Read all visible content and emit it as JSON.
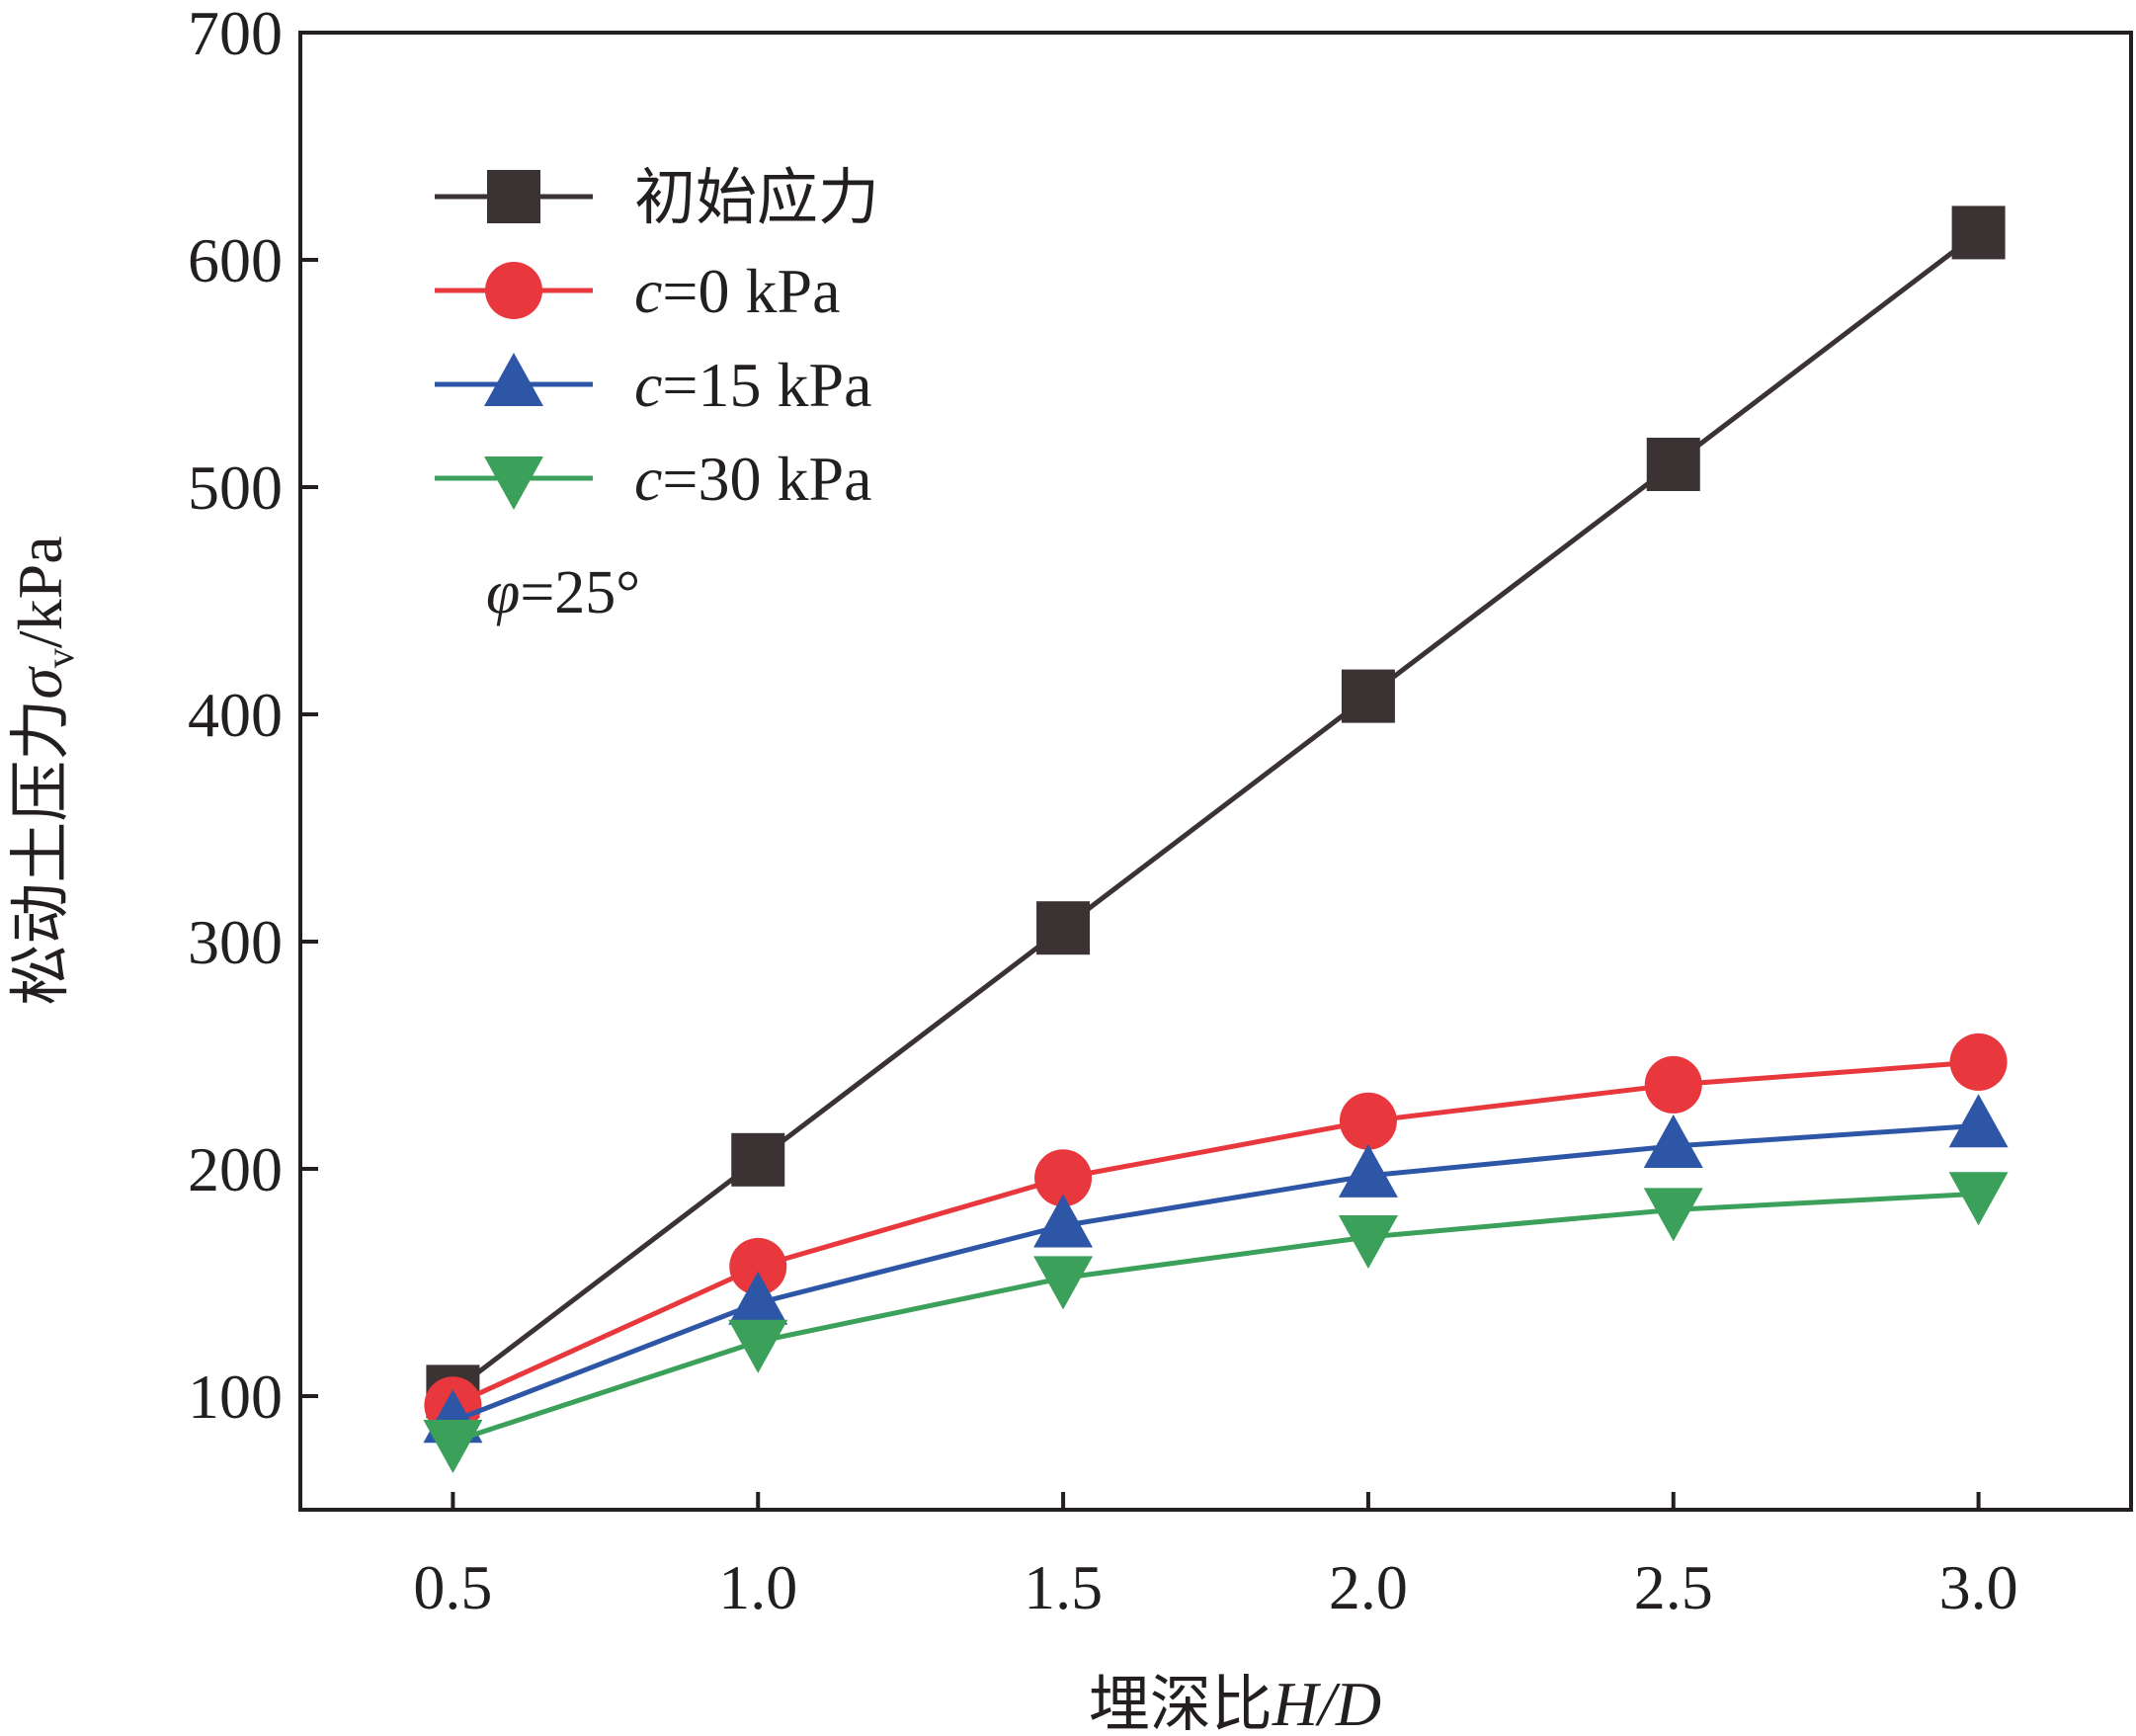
{
  "chart_data": {
    "type": "line",
    "xlabel_prefix": "埋深比",
    "xlabel_var": "H/D",
    "ylabel_prefix": "松动土压力",
    "ylabel_symbol": "σ",
    "ylabel_sub": "v",
    "ylabel_unit": "/kPa",
    "x": [
      0.5,
      1.0,
      1.5,
      2.0,
      2.5,
      3.0
    ],
    "x_tick_labels": [
      "0.5",
      "1.0",
      "1.5",
      "2.0",
      "2.5",
      "3.0"
    ],
    "y_ticks": [
      100,
      200,
      300,
      400,
      500,
      600,
      700
    ],
    "y_tick_labels": [
      "100",
      "200",
      "300",
      "400",
      "500",
      "600",
      "700"
    ],
    "xlim": [
      0.25,
      3.25
    ],
    "ylim": [
      50,
      700
    ],
    "grid": false,
    "legend_position": "top-left",
    "series": [
      {
        "name": "初始应力",
        "name_var": "",
        "name_rest": "",
        "color": "#3a3233",
        "marker": "square",
        "values": [
          102,
          204,
          306,
          408,
          510,
          612
        ]
      },
      {
        "name": "",
        "name_var": "c",
        "name_rest": "=0 kPa",
        "color": "#e8383d",
        "marker": "circle",
        "values": [
          96,
          157,
          196,
          221,
          237,
          247
        ]
      },
      {
        "name": "",
        "name_var": "c",
        "name_rest": "=15 kPa",
        "color": "#2e56a6",
        "marker": "triangle-up",
        "values": [
          89,
          141,
          175,
          197,
          210,
          219
        ]
      },
      {
        "name": "",
        "name_var": "c",
        "name_rest": "=30 kPa",
        "color": "#3aa05a",
        "marker": "triangle-down",
        "values": [
          80,
          124,
          152,
          170,
          182,
          189
        ]
      }
    ],
    "annotation_var": "φ",
    "annotation_rest": "=25°"
  }
}
